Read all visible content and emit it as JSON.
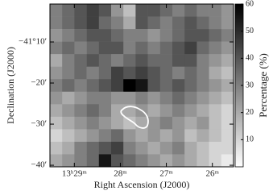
{
  "chart_data": {
    "type": "heatmap",
    "xlabel": "Right Ascension (J2000)",
    "ylabel": "Declination (J2000)",
    "xlim": [
      29.53,
      25.54
    ],
    "xticks": [
      {
        "value": 29,
        "label": "13ʰ29ᵐ"
      },
      {
        "value": 28,
        "label": "28ᵐ"
      },
      {
        "value": 27,
        "label": "27ᵐ"
      },
      {
        "value": 26,
        "label": "26ᵐ"
      }
    ],
    "ylim": [
      -41.673,
      -41.013
    ],
    "yticks": [
      {
        "value": -41.1667,
        "label": "−41°10′"
      },
      {
        "value": -41.3333,
        "label": "−20′"
      },
      {
        "value": -41.5,
        "label": "−30′"
      },
      {
        "value": -41.6667,
        "label": "−40′"
      }
    ],
    "z": [
      [
        30,
        35,
        40,
        45,
        40,
        25,
        15,
        40,
        40,
        35,
        30,
        35,
        30,
        30,
        25
      ],
      [
        30,
        35,
        40,
        45,
        35,
        30,
        20,
        40,
        35,
        30,
        35,
        40,
        35,
        30,
        25
      ],
      [
        25,
        30,
        35,
        40,
        40,
        35,
        30,
        30,
        25,
        30,
        35,
        40,
        40,
        35,
        30
      ],
      [
        30,
        35,
        30,
        35,
        40,
        40,
        30,
        35,
        30,
        35,
        40,
        45,
        35,
        30,
        25
      ],
      [
        20,
        30,
        35,
        40,
        35,
        30,
        35,
        40,
        35,
        35,
        40,
        40,
        30,
        25,
        20
      ],
      [
        25,
        30,
        35,
        30,
        35,
        45,
        40,
        45,
        40,
        35,
        30,
        35,
        30,
        20,
        15
      ],
      [
        30,
        35,
        30,
        35,
        40,
        45,
        60,
        55,
        40,
        35,
        40,
        35,
        30,
        25,
        20
      ],
      [
        25,
        20,
        25,
        30,
        30,
        25,
        25,
        30,
        25,
        30,
        35,
        30,
        25,
        20,
        15
      ],
      [
        20,
        25,
        30,
        35,
        30,
        20,
        20,
        25,
        20,
        25,
        30,
        25,
        20,
        15,
        10
      ],
      [
        15,
        20,
        25,
        30,
        25,
        20,
        15,
        20,
        25,
        30,
        25,
        20,
        25,
        15,
        10
      ],
      [
        10,
        15,
        20,
        25,
        30,
        35,
        25,
        20,
        25,
        20,
        25,
        15,
        20,
        15,
        10
      ],
      [
        15,
        20,
        30,
        35,
        40,
        45,
        30,
        25,
        20,
        25,
        30,
        20,
        15,
        10,
        10
      ],
      [
        20,
        25,
        30,
        35,
        55,
        40,
        35,
        30,
        25,
        20,
        25,
        20,
        15,
        10,
        5
      ]
    ],
    "colorbar": {
      "label": "Percentage (%)",
      "lim": [
        0,
        60
      ],
      "ticks": [
        10,
        20,
        30,
        40,
        50,
        60
      ],
      "colors": [
        "#ffffff",
        "#000000"
      ]
    }
  }
}
